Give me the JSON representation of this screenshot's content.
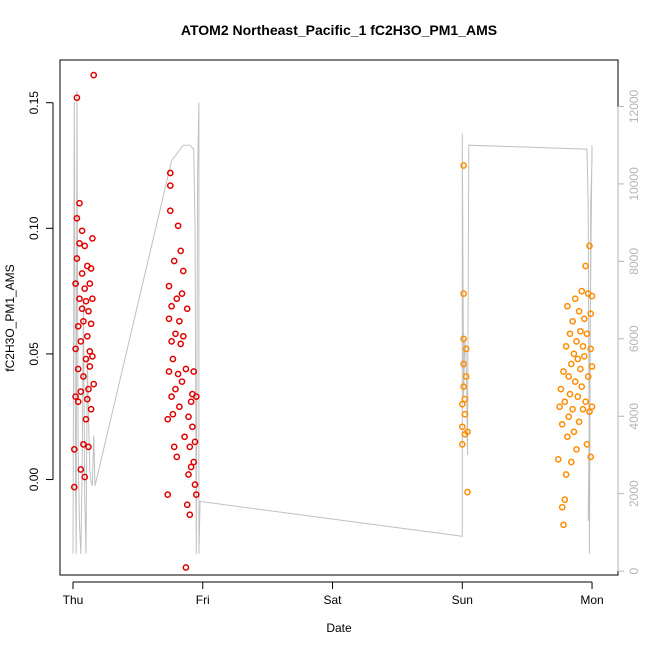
{
  "chart_data": {
    "type": "scatter",
    "title": "ATOM2 Northeast_Pacific_1 fC2H3O_PM1_AMS",
    "xlabel": "Date",
    "ylabel": "fC2H3O_PM1_AMS",
    "x_ticks": [
      {
        "label": "Thu",
        "day": 0
      },
      {
        "label": "Fri",
        "day": 1
      },
      {
        "label": "Sat",
        "day": 2
      },
      {
        "label": "Sun",
        "day": 3
      },
      {
        "label": "Mon",
        "day": 4
      }
    ],
    "xlim": [
      -0.1,
      4.2
    ],
    "ylim": [
      -0.038,
      0.167
    ],
    "y_ticks": [
      "0.00",
      "0.05",
      "0.10",
      "0.15"
    ],
    "y2_ticks": [
      "0",
      "2000",
      "4000",
      "6000",
      "8000",
      "10000",
      "12000"
    ],
    "y2lim": [
      -100,
      13200
    ],
    "grid": false,
    "colors": {
      "series_a": "#e00000",
      "series_b": "#ff8c00",
      "altitude": "#c0c0c0"
    },
    "series": [
      {
        "color": "red",
        "points": [
          [
            0.01,
            -0.003
          ],
          [
            0.01,
            0.012
          ],
          [
            0.02,
            0.033
          ],
          [
            0.02,
            0.052
          ],
          [
            0.02,
            0.078
          ],
          [
            0.03,
            0.088
          ],
          [
            0.03,
            0.104
          ],
          [
            0.03,
            0.152
          ],
          [
            0.04,
            0.031
          ],
          [
            0.04,
            0.044
          ],
          [
            0.04,
            0.061
          ],
          [
            0.05,
            0.072
          ],
          [
            0.05,
            0.094
          ],
          [
            0.05,
            0.11
          ],
          [
            0.06,
            0.004
          ],
          [
            0.06,
            0.035
          ],
          [
            0.06,
            0.055
          ],
          [
            0.07,
            0.068
          ],
          [
            0.07,
            0.082
          ],
          [
            0.07,
            0.099
          ],
          [
            0.08,
            0.014
          ],
          [
            0.08,
            0.041
          ],
          [
            0.08,
            0.063
          ],
          [
            0.09,
            0.076
          ],
          [
            0.09,
            0.093
          ],
          [
            0.09,
            0.001
          ],
          [
            0.1,
            0.024
          ],
          [
            0.1,
            0.048
          ],
          [
            0.1,
            0.071
          ],
          [
            0.11,
            0.085
          ],
          [
            0.11,
            0.032
          ],
          [
            0.11,
            0.057
          ],
          [
            0.12,
            0.013
          ],
          [
            0.12,
            0.067
          ],
          [
            0.12,
            0.036
          ],
          [
            0.13,
            0.051
          ],
          [
            0.13,
            0.078
          ],
          [
            0.13,
            0.045
          ],
          [
            0.14,
            0.062
          ],
          [
            0.14,
            0.084
          ],
          [
            0.14,
            0.028
          ],
          [
            0.15,
            0.049
          ],
          [
            0.15,
            0.096
          ],
          [
            0.15,
            0.072
          ],
          [
            0.16,
            0.161
          ],
          [
            0.16,
            0.038
          ],
          [
            0.73,
            -0.006
          ],
          [
            0.73,
            0.024
          ],
          [
            0.74,
            0.043
          ],
          [
            0.74,
            0.064
          ],
          [
            0.74,
            0.077
          ],
          [
            0.75,
            0.107
          ],
          [
            0.75,
            0.117
          ],
          [
            0.75,
            0.122
          ],
          [
            0.76,
            0.033
          ],
          [
            0.76,
            0.055
          ],
          [
            0.76,
            0.069
          ],
          [
            0.77,
            0.026
          ],
          [
            0.77,
            0.048
          ],
          [
            0.78,
            0.087
          ],
          [
            0.78,
            0.013
          ],
          [
            0.79,
            0.036
          ],
          [
            0.79,
            0.058
          ],
          [
            0.8,
            0.072
          ],
          [
            0.8,
            0.009
          ],
          [
            0.81,
            0.042
          ],
          [
            0.81,
            0.101
          ],
          [
            0.82,
            0.063
          ],
          [
            0.82,
            0.029
          ],
          [
            0.83,
            0.054
          ],
          [
            0.83,
            0.091
          ],
          [
            0.84,
            0.074
          ],
          [
            0.84,
            0.039
          ],
          [
            0.85,
            0.083
          ],
          [
            0.85,
            0.057
          ],
          [
            0.86,
            0.017
          ],
          [
            0.87,
            -0.035
          ],
          [
            0.87,
            0.044
          ],
          [
            0.88,
            0.068
          ],
          [
            0.88,
            -0.01
          ],
          [
            0.89,
            0.002
          ],
          [
            0.89,
            0.025
          ],
          [
            0.9,
            -0.014
          ],
          [
            0.9,
            0.013
          ],
          [
            0.91,
            0.031
          ],
          [
            0.91,
            0.005
          ],
          [
            0.92,
            0.034
          ],
          [
            0.92,
            0.021
          ],
          [
            0.93,
            0.043
          ],
          [
            0.93,
            0.007
          ],
          [
            0.94,
            -0.002
          ],
          [
            0.94,
            0.015
          ],
          [
            0.95,
            0.033
          ],
          [
            0.95,
            -0.006
          ]
        ]
      },
      {
        "color": "orange",
        "points": [
          [
            3.0,
            0.014
          ],
          [
            3.0,
            0.021
          ],
          [
            3.0,
            0.03
          ],
          [
            3.01,
            0.037
          ],
          [
            3.01,
            0.046
          ],
          [
            3.01,
            0.056
          ],
          [
            3.01,
            0.074
          ],
          [
            3.01,
            0.125
          ],
          [
            3.02,
            0.018
          ],
          [
            3.02,
            0.026
          ],
          [
            3.02,
            0.032
          ],
          [
            3.03,
            0.041
          ],
          [
            3.03,
            0.052
          ],
          [
            3.04,
            -0.005
          ],
          [
            3.04,
            0.019
          ],
          [
            3.74,
            0.008
          ],
          [
            3.75,
            0.029
          ],
          [
            3.76,
            0.036
          ],
          [
            3.77,
            -0.011
          ],
          [
            3.77,
            0.022
          ],
          [
            3.78,
            0.043
          ],
          [
            3.78,
            -0.018
          ],
          [
            3.79,
            -0.008
          ],
          [
            3.79,
            0.031
          ],
          [
            3.8,
            0.002
          ],
          [
            3.8,
            0.053
          ],
          [
            3.81,
            0.017
          ],
          [
            3.81,
            0.069
          ],
          [
            3.82,
            0.041
          ],
          [
            3.82,
            0.025
          ],
          [
            3.83,
            0.058
          ],
          [
            3.83,
            0.034
          ],
          [
            3.84,
            0.046
          ],
          [
            3.84,
            0.007
          ],
          [
            3.85,
            0.063
          ],
          [
            3.85,
            0.028
          ],
          [
            3.86,
            0.05
          ],
          [
            3.86,
            0.019
          ],
          [
            3.87,
            0.039
          ],
          [
            3.87,
            0.072
          ],
          [
            3.88,
            0.055
          ],
          [
            3.88,
            0.012
          ],
          [
            3.89,
            0.033
          ],
          [
            3.89,
            0.048
          ],
          [
            3.9,
            0.067
          ],
          [
            3.9,
            0.023
          ],
          [
            3.91,
            0.044
          ],
          [
            3.91,
            0.059
          ],
          [
            3.92,
            0.037
          ],
          [
            3.92,
            0.075
          ],
          [
            3.93,
            0.053
          ],
          [
            3.93,
            0.028
          ],
          [
            3.94,
            0.049
          ],
          [
            3.94,
            0.064
          ],
          [
            3.95,
            0.031
          ],
          [
            3.95,
            0.085
          ],
          [
            3.96,
            0.014
          ],
          [
            3.96,
            0.058
          ],
          [
            3.97,
            0.041
          ],
          [
            3.97,
            0.074
          ],
          [
            3.98,
            0.093
          ],
          [
            3.98,
            0.027
          ],
          [
            3.99,
            0.052
          ],
          [
            3.99,
            0.066
          ],
          [
            3.99,
            0.009
          ],
          [
            4.0,
            0.045
          ],
          [
            4.0,
            0.073
          ],
          [
            4.0,
            0.029
          ]
        ]
      }
    ],
    "altitude_trace": [
      [
        0.0,
        450
      ],
      [
        0.01,
        12100
      ],
      [
        0.02,
        2000
      ],
      [
        0.025,
        450
      ],
      [
        0.03,
        12400
      ],
      [
        0.04,
        3000
      ],
      [
        0.05,
        1200
      ],
      [
        0.06,
        450
      ],
      [
        0.07,
        2500
      ],
      [
        0.08,
        7000
      ],
      [
        0.09,
        2000
      ],
      [
        0.1,
        450
      ],
      [
        0.11,
        5500
      ],
      [
        0.12,
        4000
      ],
      [
        0.13,
        2600
      ],
      [
        0.14,
        2300
      ],
      [
        0.15,
        2200
      ],
      [
        0.16,
        3500
      ],
      [
        0.17,
        2200
      ],
      [
        0.76,
        10600
      ],
      [
        0.85,
        11000
      ],
      [
        0.9,
        11000
      ],
      [
        0.93,
        10900
      ],
      [
        0.94,
        9000
      ],
      [
        0.95,
        450
      ],
      [
        0.96,
        10200
      ],
      [
        0.97,
        12100
      ],
      [
        0.97,
        450
      ],
      [
        0.98,
        1800
      ],
      [
        3.0,
        900
      ],
      [
        3.0,
        11300
      ],
      [
        3.01,
        4500
      ],
      [
        3.02,
        6000
      ],
      [
        3.03,
        5500
      ],
      [
        3.04,
        3000
      ],
      [
        3.05,
        11000
      ],
      [
        3.96,
        10900
      ],
      [
        3.97,
        9500
      ],
      [
        3.98,
        450
      ],
      [
        3.99,
        9500
      ],
      [
        4.0,
        10600
      ],
      [
        4.0,
        11000
      ],
      [
        3.97,
        1300
      ]
    ]
  }
}
